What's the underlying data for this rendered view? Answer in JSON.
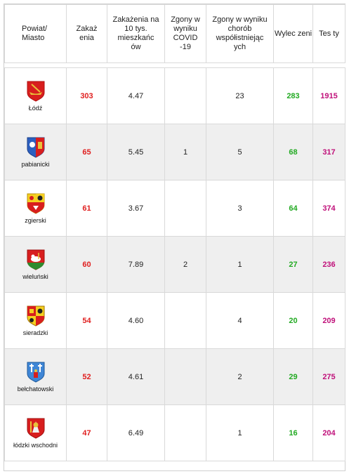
{
  "headers": {
    "powiat": "Powiat/\nMiasto",
    "zakazenia": "Zakaż\nenia",
    "na10tys": "Zakażenia na 10 tys. mieszkańc ów",
    "zgony_covid": "Zgony w wyniku COVID -19",
    "zgony_choroby": "Zgony w wyniku chorób współistniejąc ych",
    "wyleczeni": "Wylec zeni",
    "testy": "Tes ty"
  },
  "rows": [
    {
      "name": "Łódź",
      "cases": "303",
      "per10k": "4.47",
      "covid_deaths": "",
      "comorb_deaths": "23",
      "recovered": "283",
      "tests": "1915",
      "icon": "lodz-coat-of-arms-icon"
    },
    {
      "name": "pabianicki",
      "cases": "65",
      "per10k": "5.45",
      "covid_deaths": "1",
      "comorb_deaths": "5",
      "recovered": "68",
      "tests": "317",
      "icon": "pabianicki-coat-of-arms-icon"
    },
    {
      "name": "zgierski",
      "cases": "61",
      "per10k": "3.67",
      "covid_deaths": "",
      "comorb_deaths": "3",
      "recovered": "64",
      "tests": "374",
      "icon": "zgierski-coat-of-arms-icon"
    },
    {
      "name": "wieluński",
      "cases": "60",
      "per10k": "7.89",
      "covid_deaths": "2",
      "comorb_deaths": "1",
      "recovered": "27",
      "tests": "236",
      "icon": "wielunski-coat-of-arms-icon"
    },
    {
      "name": "sieradzki",
      "cases": "54",
      "per10k": "4.60",
      "covid_deaths": "",
      "comorb_deaths": "4",
      "recovered": "20",
      "tests": "209",
      "icon": "sieradzki-coat-of-arms-icon"
    },
    {
      "name": "bełchatowski",
      "cases": "52",
      "per10k": "4.61",
      "covid_deaths": "",
      "comorb_deaths": "2",
      "recovered": "29",
      "tests": "275",
      "icon": "belchatowski-coat-of-arms-icon"
    },
    {
      "name": "łódzki wschodni",
      "cases": "47",
      "per10k": "6.49",
      "covid_deaths": "",
      "comorb_deaths": "1",
      "recovered": "16",
      "tests": "204",
      "icon": "lodzki-wschodni-coat-of-arms-icon"
    }
  ],
  "colors": {
    "cases": "#e02020",
    "recovered": "#22aa22",
    "tests": "#c0107a",
    "row_alt": "#efefef"
  }
}
